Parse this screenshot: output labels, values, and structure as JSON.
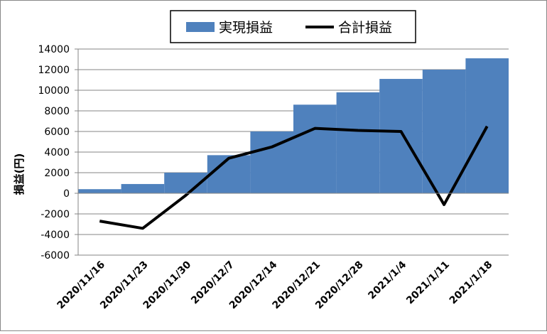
{
  "chart_data": {
    "type": "combo",
    "categories": [
      "2020/11/16",
      "2020/11/23",
      "2020/11/30",
      "2020/12/7",
      "2020/12/14",
      "2020/12/21",
      "2020/12/28",
      "2021/1/4",
      "2021/1/11",
      "2021/1/18"
    ],
    "series": [
      {
        "name": "実現損益",
        "type": "bar",
        "color": "#4f81bd",
        "values": [
          400,
          900,
          2000,
          3700,
          6000,
          8600,
          9800,
          11100,
          12000,
          13100
        ]
      },
      {
        "name": "合計損益",
        "type": "line",
        "color": "#000000",
        "values": [
          -2700,
          -3400,
          -200,
          3400,
          4500,
          6300,
          6100,
          6000,
          -1100,
          6500
        ]
      }
    ],
    "y_label": "損益(円)",
    "ylim": [
      -6000,
      14000
    ],
    "yticks": [
      -6000,
      -4000,
      -2000,
      0,
      2000,
      4000,
      6000,
      8000,
      10000,
      12000,
      14000
    ],
    "grid": true,
    "legend": "top"
  }
}
